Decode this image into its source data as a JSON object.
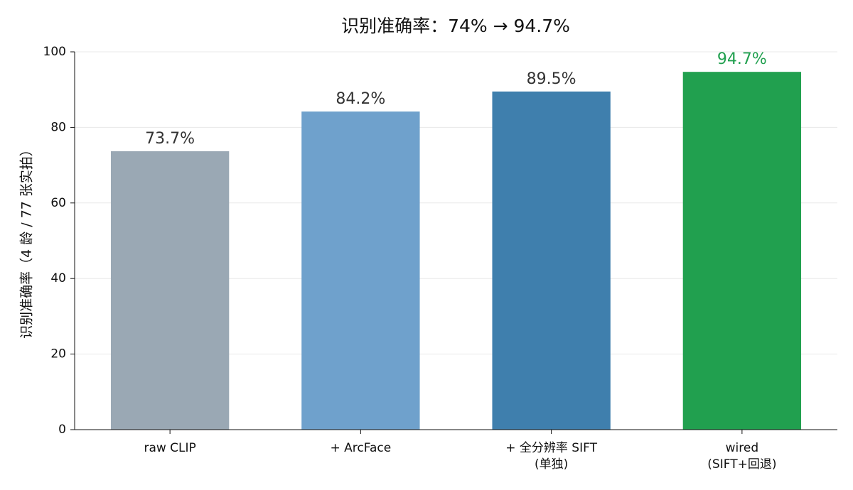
{
  "chart_data": {
    "type": "bar",
    "title": "识别准确率：74% → 94.7%",
    "ylabel": "识别准确率（4 龄 / 77 张实拍）",
    "categories": [
      "raw CLIP",
      "+ ArcFace",
      "+ 全分辨率 SIFT\n(单独)",
      "wired\n(SIFT+回退)"
    ],
    "values": [
      73.7,
      84.2,
      89.5,
      94.7
    ],
    "value_labels": [
      "73.7%",
      "84.2%",
      "89.5%",
      "94.7%"
    ],
    "colors": [
      "#9aa8b4",
      "#6fa1cc",
      "#3f7fad",
      "#21a04f"
    ],
    "value_label_colors": [
      "#333333",
      "#333333",
      "#333333",
      "#21a04f"
    ],
    "ylim": [
      0,
      100
    ],
    "yticks": [
      0,
      20,
      40,
      60,
      80,
      100
    ],
    "grid": true
  }
}
